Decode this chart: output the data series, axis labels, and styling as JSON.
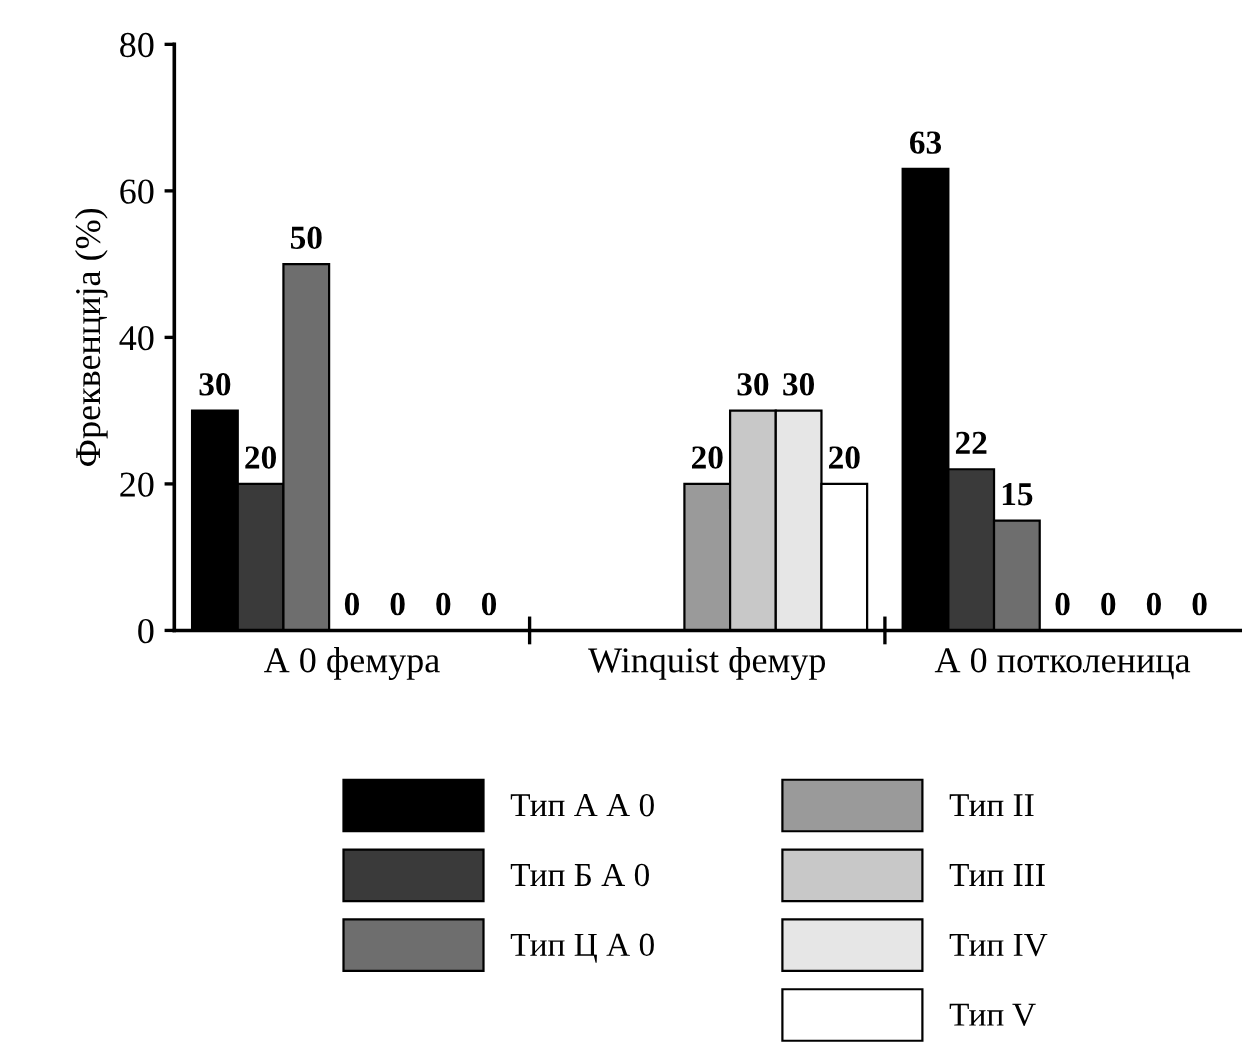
{
  "chart_data": {
    "type": "bar",
    "ylabel": "Фреквенција (%)",
    "categories": [
      "А 0 фемура",
      "Winquist фемур",
      "А 0 потколеница"
    ],
    "series": [
      {
        "name": "Тип А А 0",
        "color": "#000000",
        "values": [
          30,
          0,
          63
        ],
        "value_labels": [
          "30",
          null,
          "63"
        ]
      },
      {
        "name": "Тип Б А 0",
        "color": "#3a3a3a",
        "values": [
          20,
          0,
          22
        ],
        "value_labels": [
          "20",
          null,
          "22"
        ]
      },
      {
        "name": "Тип Ц А 0",
        "color": "#6e6e6e",
        "values": [
          50,
          0,
          15
        ],
        "value_labels": [
          "50",
          null,
          "15"
        ]
      },
      {
        "name": "Тип II",
        "color": "#9a9a9a",
        "values": [
          0,
          20,
          0
        ],
        "value_labels": [
          "0",
          "20",
          "0"
        ]
      },
      {
        "name": "Тип III",
        "color": "#c8c8c8",
        "values": [
          0,
          30,
          0
        ],
        "value_labels": [
          "0",
          "30",
          "0"
        ]
      },
      {
        "name": "Тип IV",
        "color": "#e6e6e6",
        "values": [
          0,
          30,
          0
        ],
        "value_labels": [
          "0",
          "30",
          "0"
        ]
      },
      {
        "name": "Тип V",
        "color": "#ffffff",
        "values": [
          0,
          20,
          0
        ],
        "value_labels": [
          "0",
          "20",
          "0"
        ]
      }
    ],
    "ylim": [
      0,
      80
    ],
    "yticks": [
      0,
      20,
      40,
      60,
      80
    ],
    "grid": false,
    "legend": "bottom"
  }
}
